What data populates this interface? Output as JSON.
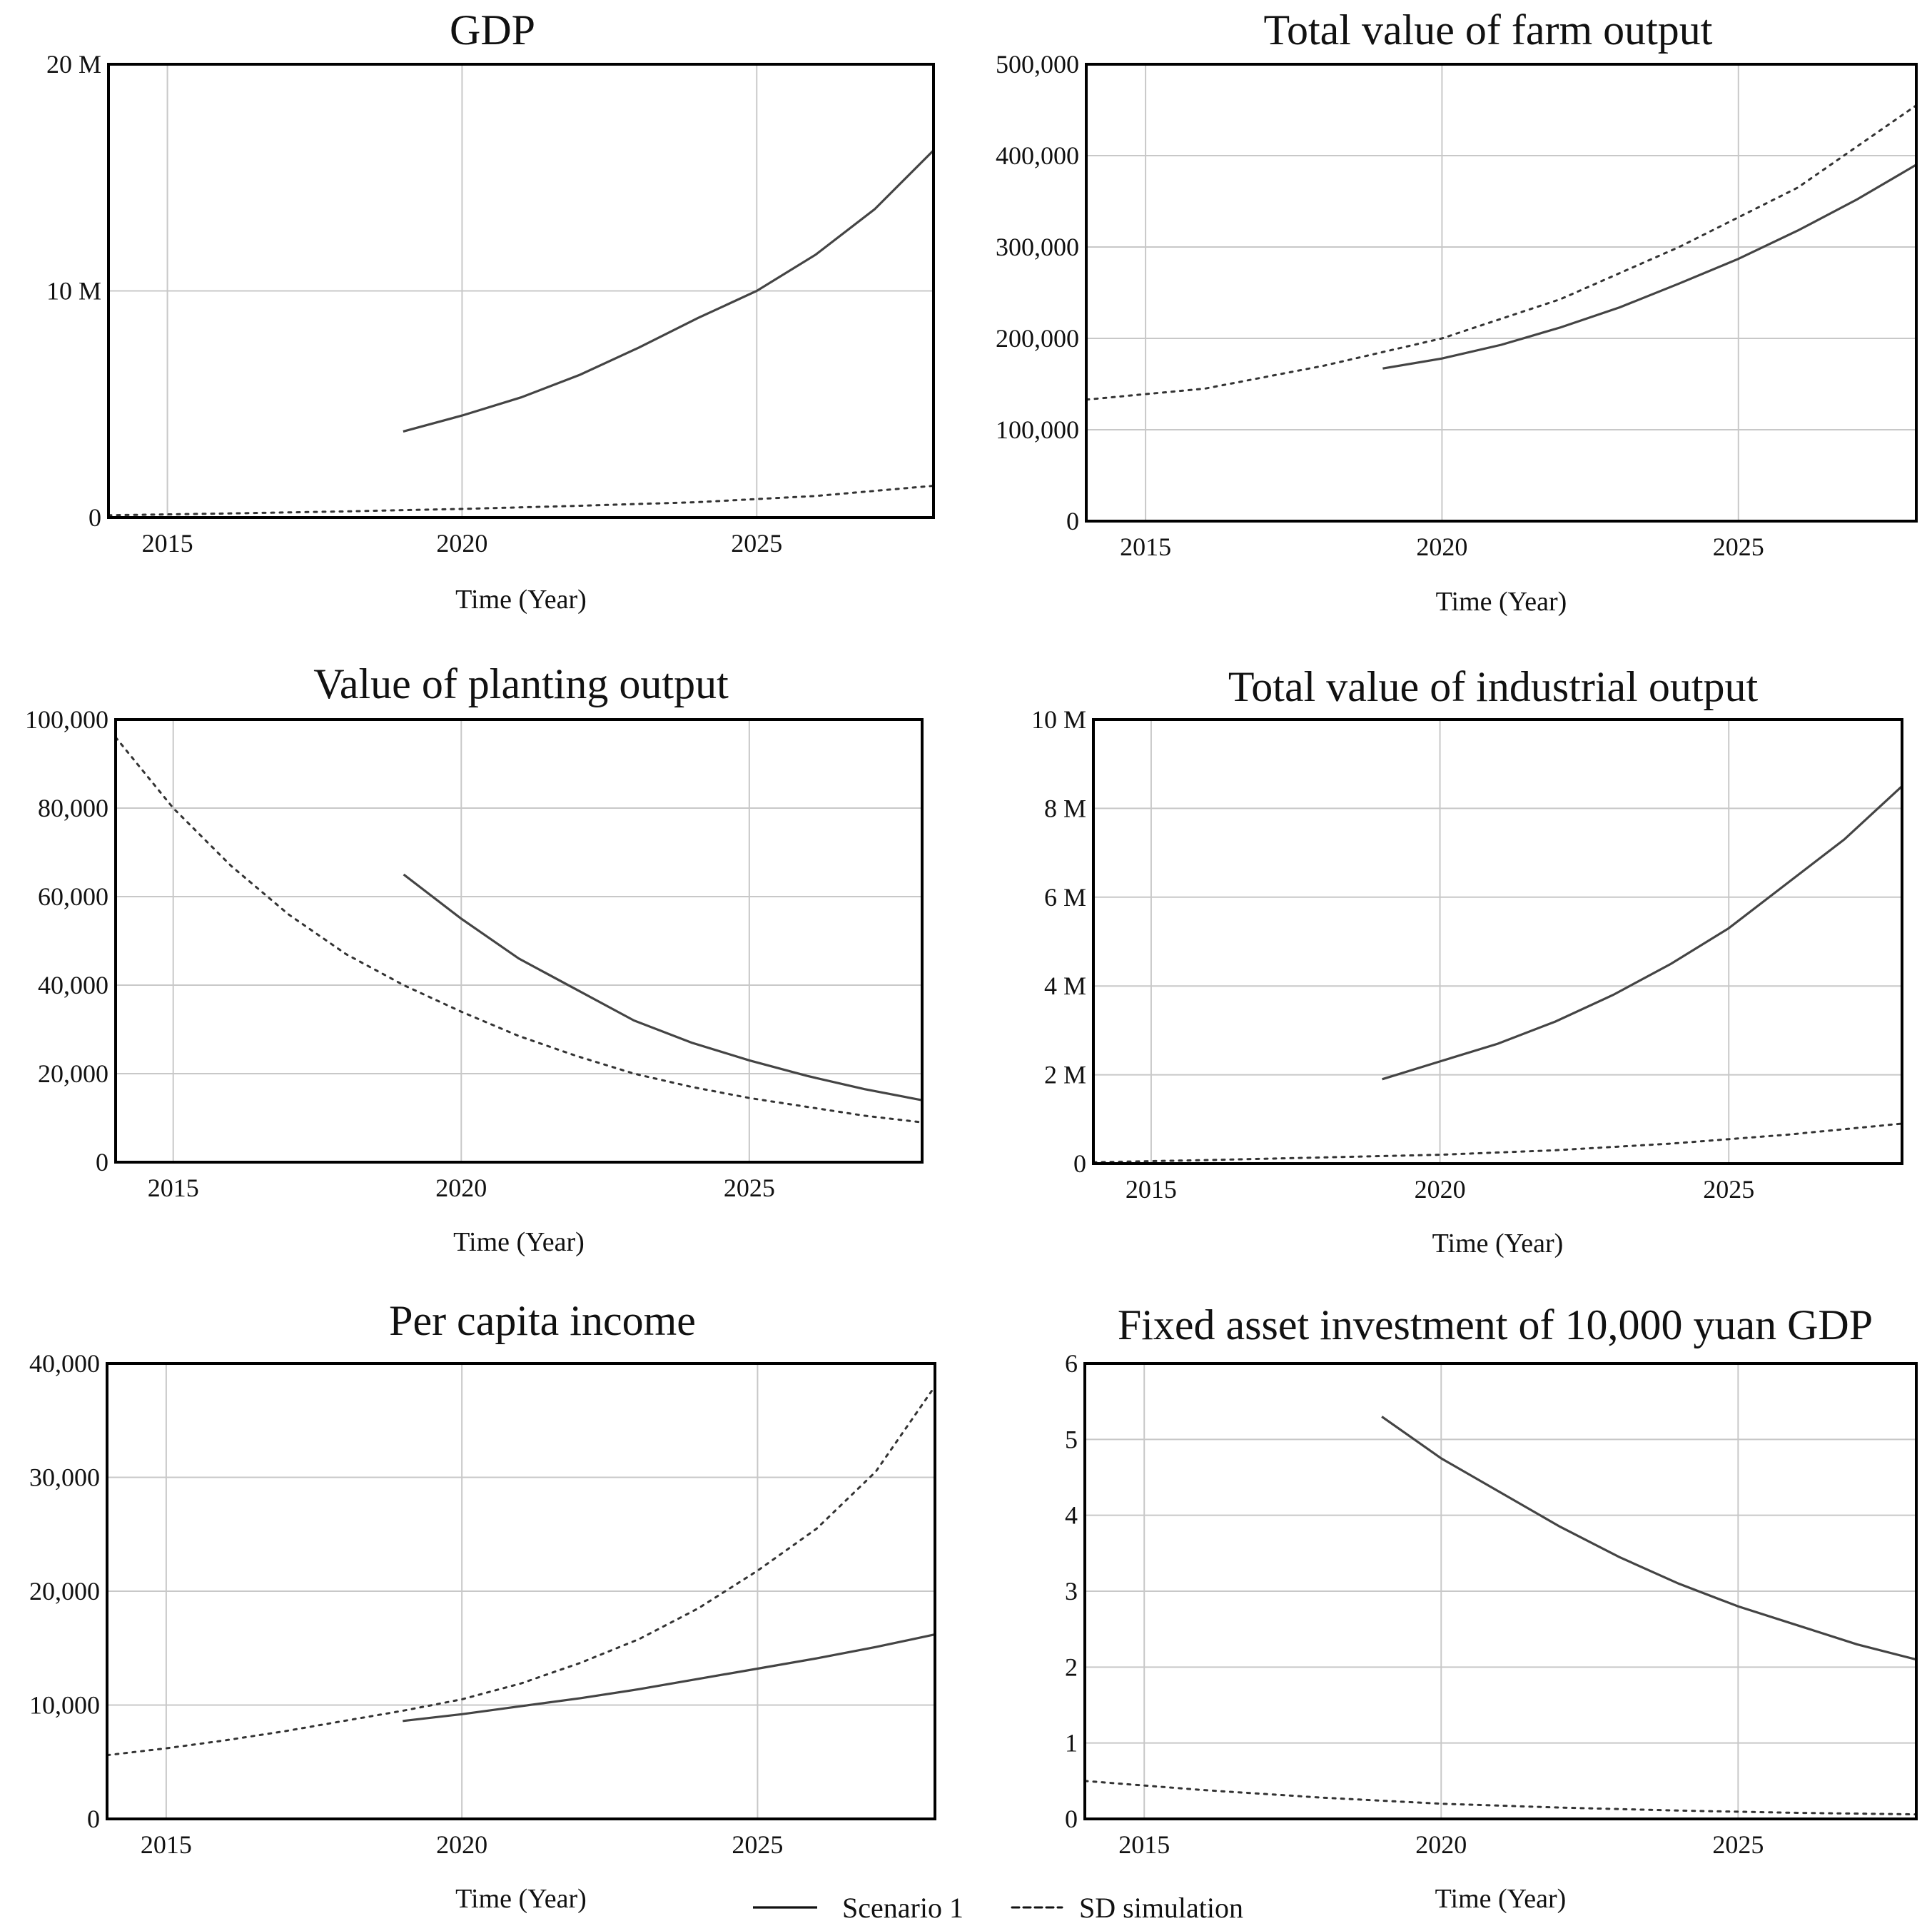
{
  "chart_data": [
    {
      "type": "line",
      "title": "GDP",
      "xlabel": "Time (Year)",
      "ylabel": "",
      "xlim": [
        2014,
        2028
      ],
      "ylim": [
        0,
        20000000
      ],
      "yticks": [
        0,
        10000000,
        20000000
      ],
      "ytick_labels": [
        "0",
        "10 M",
        "20 M"
      ],
      "xticks": [
        2015,
        2020,
        2025
      ],
      "xtick_labels": [
        "2015",
        "2020",
        "2025"
      ],
      "series": [
        {
          "name": "Scenario 1",
          "style": "solid",
          "x": [
            2019,
            2020,
            2021,
            2022,
            2023,
            2024,
            2025,
            2026,
            2027,
            2028
          ],
          "y": [
            3800000,
            4500000,
            5300000,
            6300000,
            7500000,
            8800000,
            10000000,
            11600000,
            13600000,
            16200000
          ]
        },
        {
          "name": "SD simulation",
          "style": "dashed",
          "x": [
            2014,
            2016,
            2018,
            2020,
            2022,
            2024,
            2026,
            2028
          ],
          "y": [
            100000,
            180000,
            270000,
            380000,
            520000,
            680000,
            950000,
            1400000
          ]
        }
      ]
    },
    {
      "type": "line",
      "title": "Total value of farm output",
      "xlabel": "Time (Year)",
      "ylabel": "",
      "xlim": [
        2014,
        2028
      ],
      "ylim": [
        0,
        500000
      ],
      "yticks": [
        0,
        100000,
        200000,
        300000,
        400000,
        500000
      ],
      "ytick_labels": [
        "0",
        "100,000",
        "200,000",
        "300,000",
        "400,000",
        "500,000"
      ],
      "xticks": [
        2015,
        2020,
        2025
      ],
      "xtick_labels": [
        "2015",
        "2020",
        "2025"
      ],
      "series": [
        {
          "name": "Scenario 1",
          "style": "solid",
          "x": [
            2019,
            2020,
            2021,
            2022,
            2023,
            2024,
            2025,
            2026,
            2027,
            2028
          ],
          "y": [
            167000,
            178000,
            193000,
            212000,
            234000,
            260000,
            287000,
            318000,
            352000,
            390000
          ]
        },
        {
          "name": "SD simulation",
          "style": "dashed",
          "x": [
            2014,
            2016,
            2018,
            2020,
            2022,
            2024,
            2026,
            2028
          ],
          "y": [
            133000,
            145000,
            170000,
            200000,
            243000,
            300000,
            365000,
            455000
          ]
        }
      ]
    },
    {
      "type": "line",
      "title": "Value of planting output",
      "xlabel": "Time (Year)",
      "ylabel": "",
      "xlim": [
        2014,
        2028
      ],
      "ylim": [
        0,
        100000
      ],
      "yticks": [
        0,
        20000,
        40000,
        60000,
        80000,
        100000
      ],
      "ytick_labels": [
        "0",
        "20,000",
        "40,000",
        "60,000",
        "80,000",
        "100,000"
      ],
      "xticks": [
        2015,
        2020,
        2025
      ],
      "xtick_labels": [
        "2015",
        "2020",
        "2025"
      ],
      "series": [
        {
          "name": "Scenario 1",
          "style": "solid",
          "x": [
            2019,
            2020,
            2021,
            2022,
            2023,
            2024,
            2025,
            2026,
            2027,
            2028
          ],
          "y": [
            65000,
            55000,
            46000,
            39000,
            32000,
            27000,
            23000,
            19500,
            16500,
            14000
          ]
        },
        {
          "name": "SD simulation",
          "style": "dashed",
          "x": [
            2014,
            2015,
            2016,
            2017,
            2018,
            2019,
            2020,
            2021,
            2022,
            2023,
            2024,
            2025,
            2026,
            2027,
            2028
          ],
          "y": [
            96000,
            80000,
            67000,
            56000,
            47000,
            40000,
            34000,
            28500,
            24000,
            20000,
            17000,
            14500,
            12500,
            10500,
            9000
          ]
        }
      ]
    },
    {
      "type": "line",
      "title": "Total value of industrial output",
      "xlabel": "Time (Year)",
      "ylabel": "",
      "xlim": [
        2014,
        2028
      ],
      "ylim": [
        0,
        10000000
      ],
      "yticks": [
        0,
        2000000,
        4000000,
        6000000,
        8000000,
        10000000
      ],
      "ytick_labels": [
        "0",
        "2 M",
        "4 M",
        "6 M",
        "8 M",
        "10 M"
      ],
      "xticks": [
        2015,
        2020,
        2025
      ],
      "xtick_labels": [
        "2015",
        "2020",
        "2025"
      ],
      "series": [
        {
          "name": "Scenario 1",
          "style": "solid",
          "x": [
            2019,
            2020,
            2021,
            2022,
            2023,
            2024,
            2025,
            2026,
            2027,
            2028
          ],
          "y": [
            1900000,
            2300000,
            2700000,
            3200000,
            3800000,
            4500000,
            5300000,
            6300000,
            7300000,
            8500000
          ]
        },
        {
          "name": "SD simulation",
          "style": "dashed",
          "x": [
            2014,
            2016,
            2018,
            2020,
            2022,
            2024,
            2026,
            2028
          ],
          "y": [
            30000,
            80000,
            140000,
            200000,
            300000,
            450000,
            650000,
            900000
          ]
        }
      ]
    },
    {
      "type": "line",
      "title": "Per capita income",
      "xlabel": "Time (Year)",
      "ylabel": "",
      "xlim": [
        2014,
        2028
      ],
      "ylim": [
        0,
        40000
      ],
      "yticks": [
        0,
        10000,
        20000,
        30000,
        40000
      ],
      "ytick_labels": [
        "0",
        "10,000",
        "20,000",
        "30,000",
        "40,000"
      ],
      "xticks": [
        2015,
        2020,
        2025
      ],
      "xtick_labels": [
        "2015",
        "2020",
        "2025"
      ],
      "series": [
        {
          "name": "Scenario 1",
          "style": "solid",
          "x": [
            2019,
            2020,
            2021,
            2022,
            2023,
            2024,
            2025,
            2026,
            2027,
            2028
          ],
          "y": [
            8600,
            9200,
            9900,
            10600,
            11400,
            12300,
            13200,
            14100,
            15100,
            16200
          ]
        },
        {
          "name": "SD simulation",
          "style": "dashed",
          "x": [
            2014,
            2015,
            2016,
            2017,
            2018,
            2019,
            2020,
            2021,
            2022,
            2023,
            2024,
            2025,
            2026,
            2027,
            2028
          ],
          "y": [
            5600,
            6200,
            6900,
            7700,
            8600,
            9500,
            10500,
            11900,
            13700,
            15800,
            18500,
            21800,
            25500,
            30500,
            38000
          ]
        }
      ]
    },
    {
      "type": "line",
      "title": "Fixed asset investment of 10,000 yuan GDP",
      "xlabel": "Time (Year)",
      "ylabel": "",
      "xlim": [
        2014,
        2028
      ],
      "ylim": [
        0,
        6
      ],
      "yticks": [
        0,
        1,
        2,
        3,
        4,
        5,
        6
      ],
      "ytick_labels": [
        "0",
        "1",
        "2",
        "3",
        "4",
        "5",
        "6"
      ],
      "xticks": [
        2015,
        2020,
        2025
      ],
      "xtick_labels": [
        "2015",
        "2020",
        "2025"
      ],
      "series": [
        {
          "name": "Scenario 1",
          "style": "solid",
          "x": [
            2019,
            2020,
            2021,
            2022,
            2023,
            2024,
            2025,
            2026,
            2027,
            2028
          ],
          "y": [
            5.3,
            4.75,
            4.3,
            3.85,
            3.45,
            3.1,
            2.8,
            2.55,
            2.3,
            2.1
          ]
        },
        {
          "name": "SD simulation",
          "style": "dashed",
          "x": [
            2014,
            2016,
            2018,
            2020,
            2022,
            2024,
            2026,
            2028
          ],
          "y": [
            0.5,
            0.38,
            0.28,
            0.2,
            0.15,
            0.11,
            0.08,
            0.06
          ]
        }
      ]
    }
  ],
  "legend": {
    "items": [
      {
        "label": "Scenario 1",
        "style": "solid"
      },
      {
        "label": "SD simulation",
        "style": "dashed"
      }
    ]
  }
}
